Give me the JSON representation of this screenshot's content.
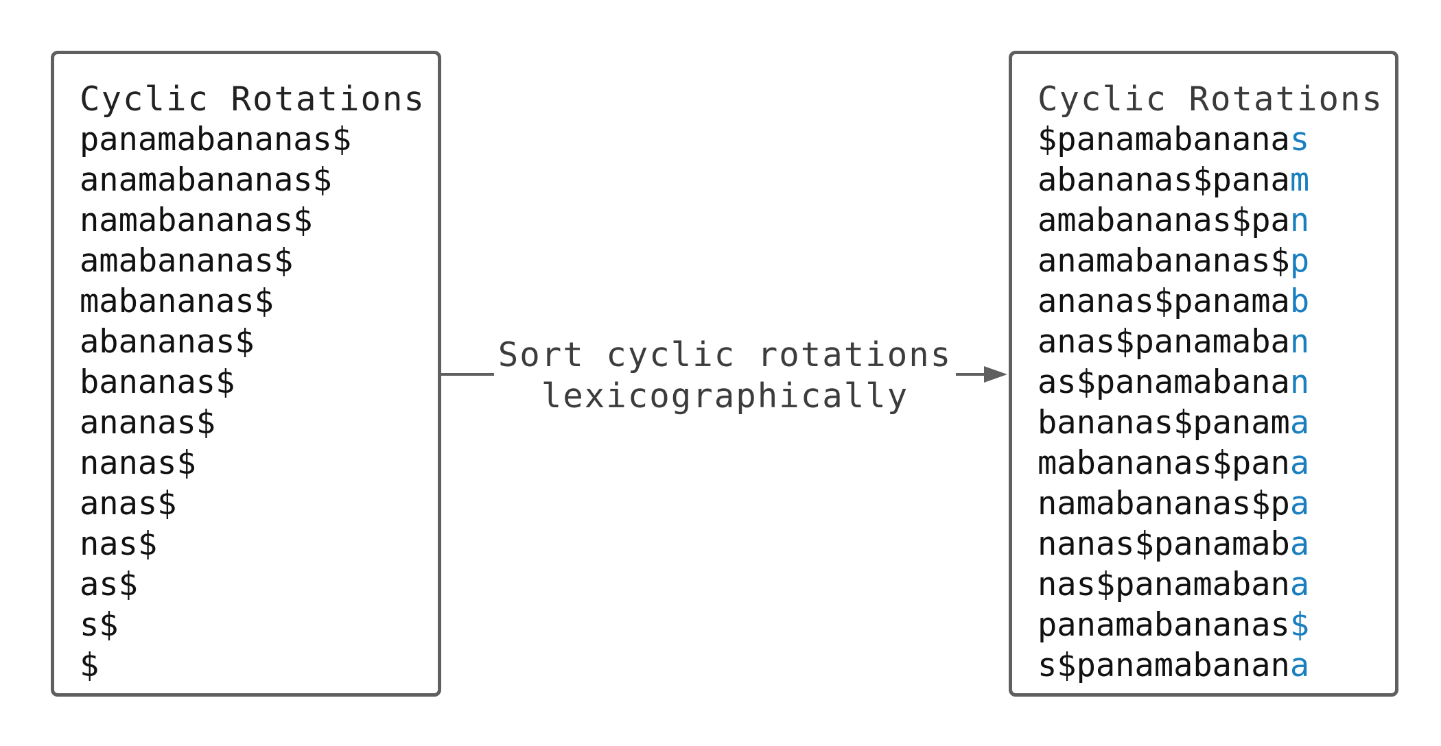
{
  "left_panel": {
    "title": "Cyclic Rotations",
    "rotations": [
      "panamabananas$",
      "anamabananas$",
      "namabananas$",
      "amabananas$",
      "mabananas$",
      "abananas$",
      "bananas$",
      "ananas$",
      "nanas$",
      "anas$",
      "nas$",
      "as$",
      "s$",
      "$"
    ]
  },
  "arrow": {
    "label_line1": "Sort cyclic rotations",
    "label_line2": "lexicographically"
  },
  "right_panel": {
    "title": "Cyclic Rotations",
    "rotations": [
      {
        "prefix": "$panamabanana",
        "last": "s"
      },
      {
        "prefix": "abananas$pana",
        "last": "m"
      },
      {
        "prefix": "amabananas$pa",
        "last": "n"
      },
      {
        "prefix": "anamabananas$",
        "last": "p"
      },
      {
        "prefix": "ananas$panama",
        "last": "b"
      },
      {
        "prefix": "anas$panamaba",
        "last": "n"
      },
      {
        "prefix": "as$panamabana",
        "last": "n"
      },
      {
        "prefix": "bananas$panam",
        "last": "a"
      },
      {
        "prefix": "mabananas$pan",
        "last": "a"
      },
      {
        "prefix": "namabananas$p",
        "last": "a"
      },
      {
        "prefix": "nanas$panamab",
        "last": "a"
      },
      {
        "prefix": "nas$panamaban",
        "last": "a"
      },
      {
        "prefix": "panamabananas",
        "last": "$"
      },
      {
        "prefix": "s$panamabanan",
        "last": "a"
      }
    ]
  },
  "colors": {
    "border": "#5f5f5f",
    "text": "#111111",
    "highlight": "#1a7fc0",
    "arrow": "#5f5f5f"
  }
}
